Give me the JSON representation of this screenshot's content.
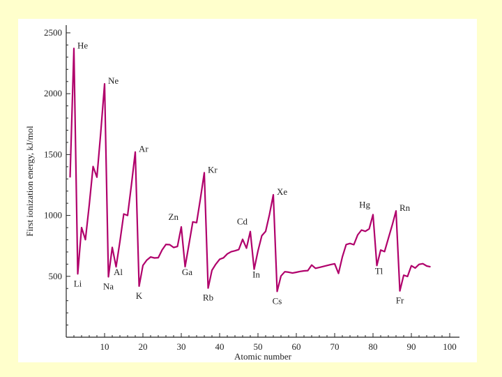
{
  "theme": {
    "background": "#FFFFCC",
    "panel": "#FFFFFF",
    "series_color": "#B0006B",
    "axis_color": "#222222"
  },
  "chart_data": {
    "type": "line",
    "title": "",
    "xlabel": "Atomic number",
    "ylabel": "First ionization energy, kJ/mol",
    "xlim": [
      0,
      100
    ],
    "ylim": [
      0,
      2500
    ],
    "xticks": [
      10,
      20,
      30,
      40,
      50,
      60,
      70,
      80,
      90,
      100
    ],
    "yticks": [
      500,
      1000,
      1500,
      2000,
      2500
    ],
    "grid": false,
    "series": [
      {
        "x": [
          1,
          2,
          3,
          4,
          5,
          6,
          7,
          8,
          9,
          10,
          11,
          12,
          13,
          14,
          15,
          16,
          17,
          18,
          19,
          20,
          21,
          22,
          23,
          24,
          25,
          26,
          27,
          28,
          29,
          30,
          31,
          32,
          33,
          34,
          35,
          36,
          37,
          38,
          39,
          40,
          41,
          42,
          43,
          44,
          45,
          46,
          47,
          48,
          49,
          50,
          51,
          52,
          53,
          54,
          55,
          56,
          57,
          58,
          59,
          60,
          61,
          62,
          63,
          64,
          65,
          66,
          67,
          68,
          69,
          70,
          71,
          72,
          73,
          74,
          75,
          76,
          77,
          78,
          79,
          80,
          81,
          82,
          83,
          84,
          85,
          86,
          87,
          88,
          89,
          90,
          91,
          92,
          93,
          94,
          95
        ],
        "y": [
          1312,
          2372,
          520,
          900,
          801,
          1086,
          1402,
          1314,
          1681,
          2081,
          496,
          738,
          578,
          786,
          1012,
          1000,
          1251,
          1521,
          419,
          590,
          633,
          659,
          651,
          653,
          717,
          762,
          760,
          737,
          745,
          906,
          579,
          762,
          947,
          941,
          1140,
          1351,
          403,
          550,
          600,
          640,
          652,
          684,
          702,
          710,
          720,
          804,
          731,
          868,
          558,
          709,
          834,
          869,
          1008,
          1170,
          376,
          503,
          538,
          534,
          527,
          533,
          540,
          545,
          547,
          593,
          566,
          573,
          581,
          589,
          597,
          603,
          524,
          659,
          761,
          770,
          760,
          840,
          880,
          870,
          890,
          1007,
          589,
          716,
          703,
          812,
          920,
          1037,
          380,
          509,
          499,
          587,
          568,
          598,
          604,
          585,
          578
        ]
      }
    ],
    "annotations": [
      {
        "text": "He",
        "x": 2
      },
      {
        "text": "Ne",
        "x": 10
      },
      {
        "text": "Ar",
        "x": 18
      },
      {
        "text": "Kr",
        "x": 36
      },
      {
        "text": "Xe",
        "x": 54
      },
      {
        "text": "Rn",
        "x": 86
      },
      {
        "text": "Li",
        "x": 3
      },
      {
        "text": "Na",
        "x": 11
      },
      {
        "text": "K",
        "x": 19
      },
      {
        "text": "Rb",
        "x": 37
      },
      {
        "text": "Cs",
        "x": 55
      },
      {
        "text": "Fr",
        "x": 87
      },
      {
        "text": "Al",
        "x": 13
      },
      {
        "text": "Ga",
        "x": 31
      },
      {
        "text": "In",
        "x": 49
      },
      {
        "text": "Tl",
        "x": 81
      },
      {
        "text": "Zn",
        "x": 30
      },
      {
        "text": "Cd",
        "x": 48
      },
      {
        "text": "Hg",
        "x": 80
      }
    ]
  }
}
